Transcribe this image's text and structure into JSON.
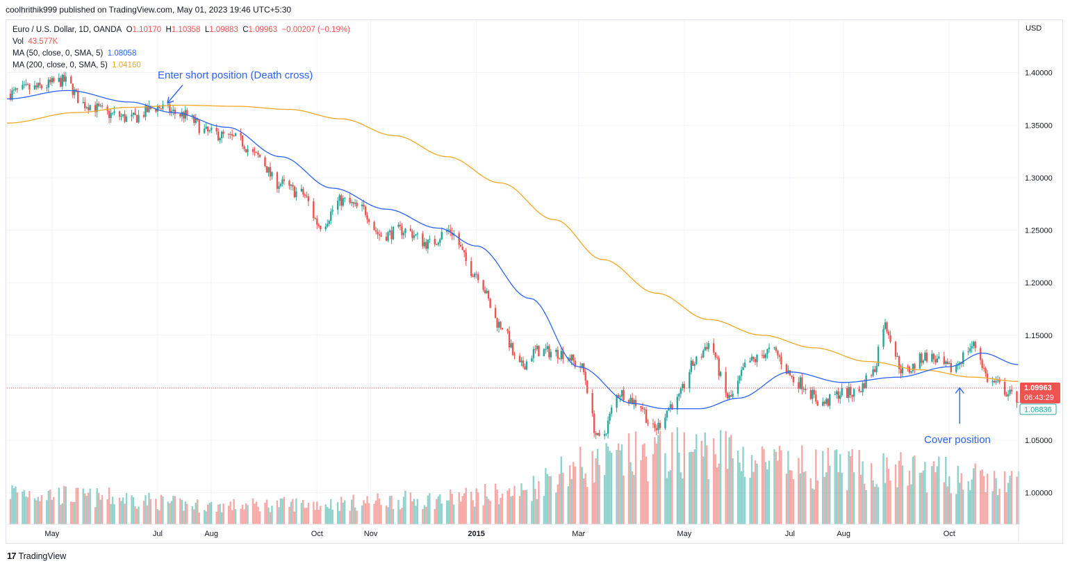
{
  "header": {
    "published_text": "coolhrithik999 published on TradingView.com, May 01, 2023 19:46 UTC+5:30"
  },
  "legend": {
    "symbol": "Euro / U.S. Dollar, 1D, OANDA",
    "o_label": "O",
    "o": "1.10170",
    "h_label": "H",
    "h": "1.10358",
    "l_label": "L",
    "l": "1.09883",
    "c_label": "C",
    "c": "1.09963",
    "change": "−0.00207 (−0.19%)",
    "vol_label": "Vol",
    "vol": "43.577K",
    "ma50_label": "MA (50, close, 0, SMA, 5)",
    "ma50": "1.08058",
    "ma200_label": "MA (200, close, 0, SMA, 5)",
    "ma200": "1.04160"
  },
  "annotations": {
    "entry": "Enter short position (Death cross)",
    "exit": "Cover position"
  },
  "price_tags": {
    "last": "1.09963",
    "countdown": "06:43:29",
    "ma": "1.08836"
  },
  "footer": {
    "logo": "17",
    "brand": "TradingView"
  },
  "colors": {
    "up": "#26a69a",
    "down": "#ef5350",
    "ma50": "#2962ff",
    "ma200": "#f5a623",
    "annotation": "#2962ff"
  },
  "chart_data": {
    "type": "candlestick",
    "currency": "USD",
    "ylim": [
      0.97,
      1.45
    ],
    "yticks": [
      "1.40000",
      "1.35000",
      "1.30000",
      "1.25000",
      "1.20000",
      "1.15000",
      "1.10000",
      "1.05000",
      "1.00000"
    ],
    "xticks": [
      "May",
      "Jul",
      "Aug",
      "Oct",
      "Nov",
      "2015",
      "Mar",
      "May",
      "Jul",
      "Aug",
      "Oct"
    ],
    "x_range": [
      "2014-04-05",
      "2015-11-10"
    ],
    "xtick_dates": [
      "2014-05-01",
      "2014-07-01",
      "2014-08-01",
      "2014-10-01",
      "2014-11-01",
      "2015-01-01",
      "2015-03-01",
      "2015-05-01",
      "2015-07-01",
      "2015-08-01",
      "2015-10-01"
    ],
    "price_anchors": [
      [
        "2014-04-05",
        1.38
      ],
      [
        "2014-04-20",
        1.385
      ],
      [
        "2014-05-08",
        1.392
      ],
      [
        "2014-05-20",
        1.37
      ],
      [
        "2014-06-05",
        1.36
      ],
      [
        "2014-06-15",
        1.356
      ],
      [
        "2014-07-01",
        1.367
      ],
      [
        "2014-07-15",
        1.36
      ],
      [
        "2014-08-01",
        1.342
      ],
      [
        "2014-08-15",
        1.337
      ],
      [
        "2014-08-28",
        1.32
      ],
      [
        "2014-09-08",
        1.295
      ],
      [
        "2014-09-22",
        1.285
      ],
      [
        "2014-10-03",
        1.255
      ],
      [
        "2014-10-15",
        1.278
      ],
      [
        "2014-10-27",
        1.27
      ],
      [
        "2014-11-07",
        1.245
      ],
      [
        "2014-11-20",
        1.25
      ],
      [
        "2014-12-05",
        1.237
      ],
      [
        "2014-12-16",
        1.25
      ],
      [
        "2014-12-31",
        1.21
      ],
      [
        "2015-01-15",
        1.16
      ],
      [
        "2015-01-26",
        1.12
      ],
      [
        "2015-02-05",
        1.135
      ],
      [
        "2015-02-20",
        1.133
      ],
      [
        "2015-03-02",
        1.12
      ],
      [
        "2015-03-13",
        1.05
      ],
      [
        "2015-03-25",
        1.095
      ],
      [
        "2015-04-05",
        1.085
      ],
      [
        "2015-04-13",
        1.06
      ],
      [
        "2015-04-25",
        1.085
      ],
      [
        "2015-05-08",
        1.125
      ],
      [
        "2015-05-15",
        1.142
      ],
      [
        "2015-05-27",
        1.09
      ],
      [
        "2015-06-08",
        1.125
      ],
      [
        "2015-06-20",
        1.135
      ],
      [
        "2015-07-06",
        1.105
      ],
      [
        "2015-07-20",
        1.085
      ],
      [
        "2015-07-31",
        1.095
      ],
      [
        "2015-08-08",
        1.095
      ],
      [
        "2015-08-18",
        1.115
      ],
      [
        "2015-08-24",
        1.16
      ],
      [
        "2015-09-05",
        1.115
      ],
      [
        "2015-09-18",
        1.13
      ],
      [
        "2015-10-02",
        1.118
      ],
      [
        "2015-10-15",
        1.14
      ],
      [
        "2015-10-25",
        1.105
      ],
      [
        "2015-11-10",
        1.09
      ]
    ],
    "ma50_anchors": [
      [
        "2014-04-05",
        1.375
      ],
      [
        "2014-05-10",
        1.383
      ],
      [
        "2014-06-15",
        1.372
      ],
      [
        "2014-07-10",
        1.362
      ],
      [
        "2014-08-10",
        1.348
      ],
      [
        "2014-09-10",
        1.32
      ],
      [
        "2014-10-10",
        1.29
      ],
      [
        "2014-11-10",
        1.27
      ],
      [
        "2014-12-10",
        1.252
      ],
      [
        "2015-01-01",
        1.235
      ],
      [
        "2015-02-01",
        1.185
      ],
      [
        "2015-03-01",
        1.12
      ],
      [
        "2015-04-01",
        1.085
      ],
      [
        "2015-04-20",
        1.08
      ],
      [
        "2015-05-10",
        1.08
      ],
      [
        "2015-06-01",
        1.09
      ],
      [
        "2015-07-01",
        1.115
      ],
      [
        "2015-08-01",
        1.105
      ],
      [
        "2015-09-01",
        1.11
      ],
      [
        "2015-10-01",
        1.12
      ],
      [
        "2015-10-20",
        1.133
      ],
      [
        "2015-11-10",
        1.122
      ]
    ],
    "ma200_anchors": [
      [
        "2014-04-05",
        1.352
      ],
      [
        "2014-05-15",
        1.362
      ],
      [
        "2014-06-15",
        1.367
      ],
      [
        "2014-07-15",
        1.369
      ],
      [
        "2014-08-15",
        1.368
      ],
      [
        "2014-09-15",
        1.365
      ],
      [
        "2014-10-15",
        1.356
      ],
      [
        "2014-11-15",
        1.34
      ],
      [
        "2014-12-15",
        1.32
      ],
      [
        "2015-01-15",
        1.295
      ],
      [
        "2015-02-15",
        1.26
      ],
      [
        "2015-03-15",
        1.222
      ],
      [
        "2015-04-15",
        1.19
      ],
      [
        "2015-05-15",
        1.165
      ],
      [
        "2015-06-15",
        1.15
      ],
      [
        "2015-07-15",
        1.138
      ],
      [
        "2015-08-15",
        1.125
      ],
      [
        "2015-09-15",
        1.117
      ],
      [
        "2015-10-15",
        1.11
      ],
      [
        "2015-11-10",
        1.106
      ]
    ],
    "volume_anchors": [
      [
        "2014-04-05",
        0.16
      ],
      [
        "2014-06-01",
        0.13
      ],
      [
        "2014-08-01",
        0.09
      ],
      [
        "2014-10-01",
        0.1
      ],
      [
        "2014-12-01",
        0.12
      ],
      [
        "2015-01-20",
        0.15
      ],
      [
        "2015-03-01",
        0.28
      ],
      [
        "2015-04-15",
        0.34
      ],
      [
        "2015-05-15",
        0.36
      ],
      [
        "2015-07-01",
        0.28
      ],
      [
        "2015-09-01",
        0.26
      ],
      [
        "2015-11-10",
        0.2
      ]
    ],
    "volume_max_label": "",
    "annotations": [
      {
        "text": "Enter short position (Death cross)",
        "date": "2014-07-01",
        "value": 1.367
      },
      {
        "text": "Cover position",
        "date": "2015-10-07",
        "value": 1.1
      }
    ],
    "last_price": 1.09963,
    "ma_price": 1.08836
  }
}
